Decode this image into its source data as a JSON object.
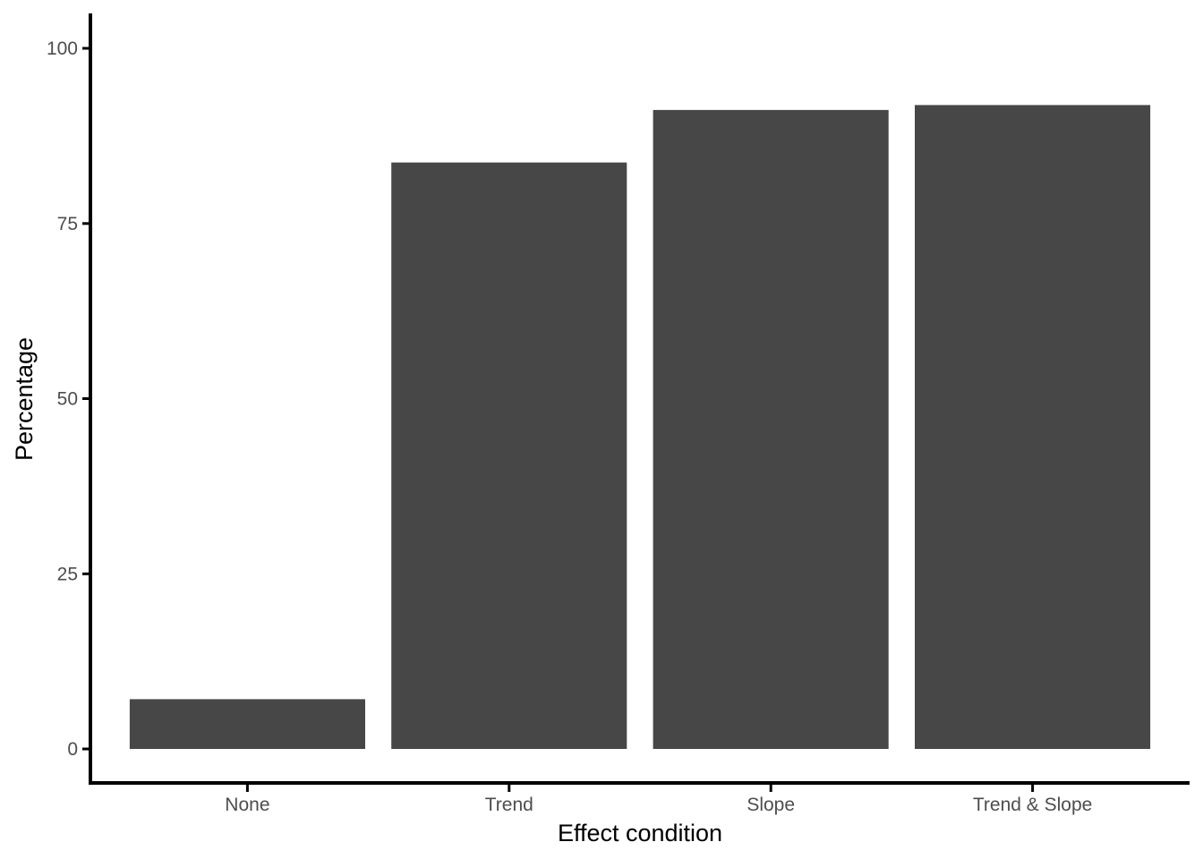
{
  "chart_data": {
    "type": "bar",
    "title": "",
    "xlabel": "Effect condition",
    "ylabel": "Percentage",
    "categories": [
      "None",
      "Trend",
      "Slope",
      "Trend & Slope"
    ],
    "values": [
      7.1,
      83.7,
      91.2,
      91.9
    ],
    "yticks": [
      0,
      25,
      50,
      75,
      100
    ],
    "ytick_labels": [
      "0",
      "25",
      "50",
      "75",
      "100"
    ],
    "ylim": [
      -4.6,
      105
    ],
    "grid": false,
    "legend": "none",
    "bar_color": "#474747"
  }
}
